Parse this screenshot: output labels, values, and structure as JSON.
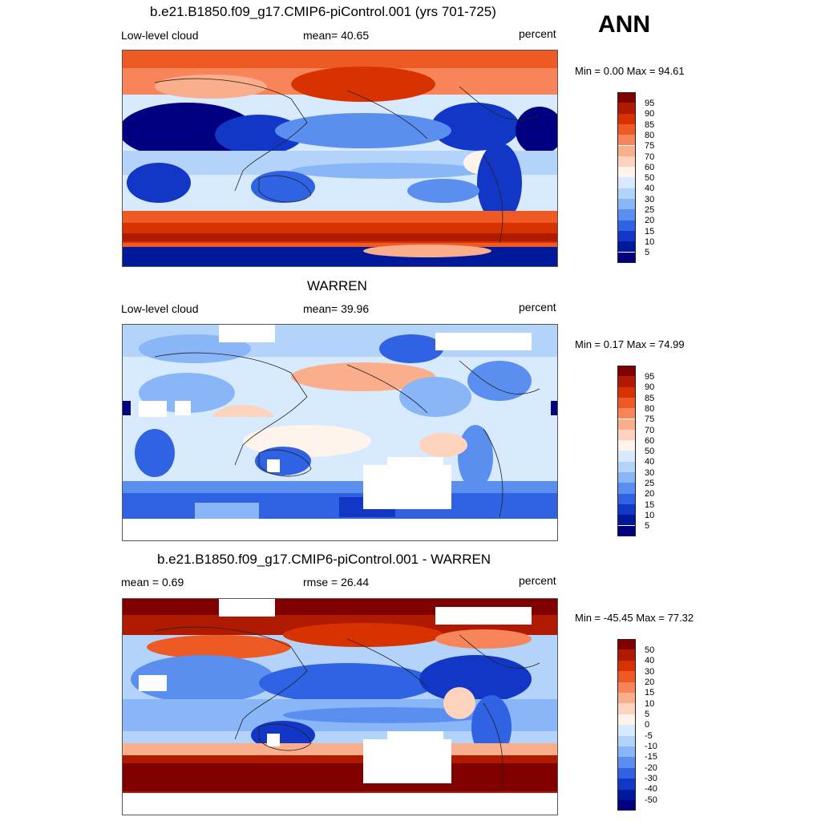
{
  "season": "ANN",
  "panels": [
    {
      "title": "b.e21.B1850.f09_g17.CMIP6-piControl.001 (yrs 701-725)",
      "left_label": "Low-level cloud",
      "center_label": "mean=  40.65",
      "right_label": "percent",
      "minmax": "Min =   0.00 Max =  94.61",
      "colorbar_ticks": [
        "95",
        "90",
        "85",
        "80",
        "75",
        "70",
        "60",
        "50",
        "40",
        "30",
        "25",
        "20",
        "15",
        "10",
        "5"
      ]
    },
    {
      "title": "WARREN",
      "left_label": "Low-level cloud",
      "center_label": "mean=  39.96",
      "right_label": "percent",
      "minmax": "Min =   0.17 Max =  74.99",
      "colorbar_ticks": [
        "95",
        "90",
        "85",
        "80",
        "75",
        "70",
        "60",
        "50",
        "40",
        "30",
        "25",
        "20",
        "15",
        "10",
        "5"
      ]
    },
    {
      "title": "b.e21.B1850.f09_g17.CMIP6-piControl.001 - WARREN",
      "left_label": "mean =   0.69",
      "center_label": "rmse =  26.44",
      "right_label": "percent",
      "minmax": "Min = -45.45 Max =  77.32",
      "colorbar_ticks": [
        "50",
        "40",
        "30",
        "20",
        "15",
        "10",
        "5",
        "0",
        "-5",
        "-10",
        "-15",
        "-20",
        "-30",
        "-40",
        "-50"
      ]
    }
  ],
  "colors": {
    "scale": [
      "#800000",
      "#b01a00",
      "#d83200",
      "#ef5a24",
      "#f8845a",
      "#fbae8c",
      "#fdd3bd",
      "#fff4ec",
      "#d8eafd",
      "#b4d3fb",
      "#88b6f7",
      "#5a8ff0",
      "#2f63e3",
      "#1237c6",
      "#00189a",
      "#000080"
    ]
  }
}
